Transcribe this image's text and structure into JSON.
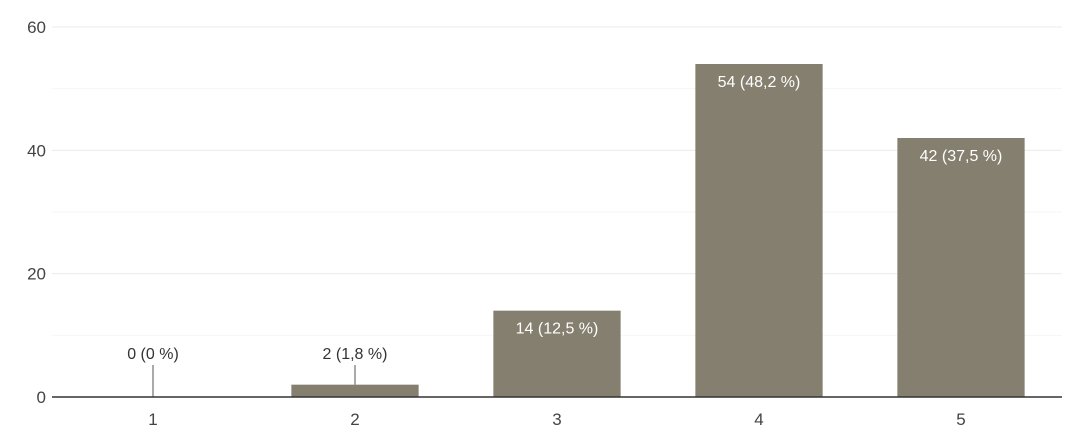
{
  "chart_data": {
    "type": "bar",
    "categories": [
      "1",
      "2",
      "3",
      "4",
      "5"
    ],
    "values": [
      0,
      2,
      14,
      54,
      42
    ],
    "data_labels": [
      "0 (0 %)",
      "2 (1,8 %)",
      "14 (12,5 %)",
      "54 (48,2 %)",
      "42 (37,5 %)"
    ],
    "y_ticks": [
      "0",
      "20",
      "40",
      "60"
    ],
    "ylim": [
      0,
      60
    ],
    "grid": true,
    "legend": "none",
    "bar_color": "#857f6f",
    "inside_label_color": "#ffffff",
    "outside_label_color": "#333333"
  }
}
